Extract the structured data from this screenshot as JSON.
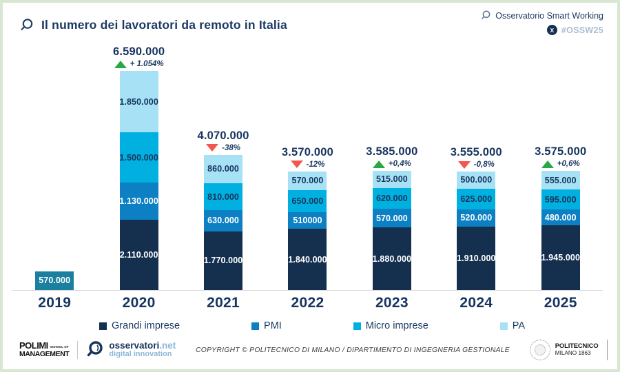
{
  "header": {
    "title": "Il numero dei lavoratori da remoto in Italia",
    "brand": "Osservatorio Smart Working",
    "x_label": "X",
    "hashtag": "#OSSW25"
  },
  "colors": {
    "navy_text": "#16345f",
    "up_green": "#2aa844",
    "down_red": "#f2574d",
    "axis_line": "#d8d8d8"
  },
  "chart_data": {
    "type": "bar",
    "stacked": true,
    "title": "Il numero dei lavoratori da remoto in Italia",
    "categories": [
      "2019",
      "2020",
      "2021",
      "2022",
      "2023",
      "2024",
      "2025"
    ],
    "ylim": [
      0,
      6590000
    ],
    "grid": false,
    "legend_position": "bottom",
    "series": [
      {
        "name": "Grandi imprese",
        "color": "#14304e",
        "label_color": "#ffffff",
        "values": [
          null,
          2110000,
          1770000,
          1840000,
          1880000,
          1910000,
          1945000
        ],
        "labels": [
          null,
          "2.110.000",
          "1.770.000",
          "1.840.000",
          "1.880.000",
          "1.910.000",
          "1.945.000"
        ]
      },
      {
        "name": "PMI",
        "color": "#0d80c4",
        "label_color": "#ffffff",
        "values": [
          null,
          1130000,
          630000,
          510000,
          570000,
          520000,
          480000
        ],
        "labels": [
          null,
          "1.130.000",
          "630.000",
          "510000",
          "570.000",
          "520.000",
          "480.000"
        ]
      },
      {
        "name": "Micro imprese",
        "color": "#00b0e0",
        "label_color": "#16355c",
        "values": [
          null,
          1500000,
          810000,
          650000,
          620000,
          625000,
          595000
        ],
        "labels": [
          null,
          "1.500.000",
          "810.000",
          "650.000",
          "620.000",
          "625.000",
          "595.000"
        ]
      },
      {
        "name": "PA",
        "color": "#a6e1f6",
        "label_color": "#16355c",
        "values": [
          null,
          1850000,
          860000,
          570000,
          515000,
          500000,
          555000
        ],
        "labels": [
          null,
          "1.850.000",
          "860.000",
          "570.000",
          "515.000",
          "500.000",
          "555.000"
        ]
      }
    ],
    "bar_2019": {
      "category": "2019",
      "value": 570000,
      "label": "570.000",
      "color": "#1b7fa0",
      "label_color": "#ffffff"
    },
    "totals": [
      null,
      {
        "total": "6.590.000",
        "change": "+ 1.054%",
        "direction": "up"
      },
      {
        "total": "4.070.000",
        "change": "-38%",
        "direction": "down"
      },
      {
        "total": "3.570.000",
        "change": "-12%",
        "direction": "down"
      },
      {
        "total": "3.585.000",
        "change": "+0,4%",
        "direction": "up"
      },
      {
        "total": "3.555.000",
        "change": "-0,8%",
        "direction": "down"
      },
      {
        "total": "3.575.000",
        "change": "+0,6%",
        "direction": "up"
      }
    ]
  },
  "footer": {
    "polimi_name": "POLIMI",
    "polimi_school": "SCHOOL OF",
    "polimi_mgmt": "MANAGEMENT",
    "oss_name": "osservatori",
    "oss_tld": ".net",
    "oss_sub": "digital innovation",
    "copyright": "COPYRIGHT © POLITECNICO DI MILANO / DIPARTIMENTO DI INGEGNERIA GESTIONALE",
    "politecnico_l1": "POLITECNICO",
    "politecnico_l2": "MILANO 1863"
  }
}
